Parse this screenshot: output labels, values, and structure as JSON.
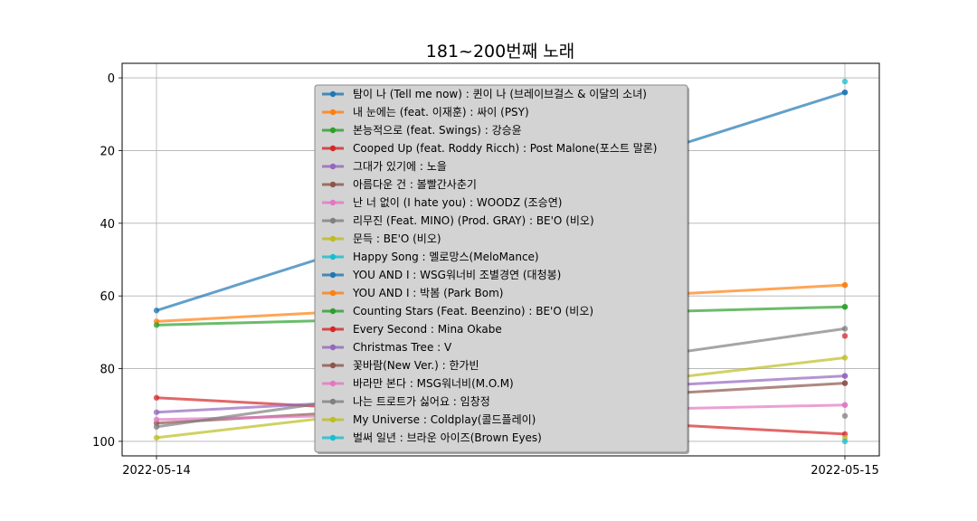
{
  "chart_data": {
    "type": "line",
    "title": "181~200번째 노래",
    "xlabel": "",
    "ylabel": "",
    "x": [
      "2022-05-14",
      "2022-05-15"
    ],
    "ylim": [
      104,
      -4
    ],
    "y_inverted": true,
    "y_ticks": [
      "0",
      "20",
      "40",
      "60",
      "80",
      "100"
    ],
    "grid": true,
    "legend_position": "center",
    "series": [
      {
        "name": "탐이 나 (Tell me now) : 퀸이 나 (브레이브걸스 & 이달의 소녀)",
        "color": "#1f77b4",
        "values": [
          64,
          4
        ]
      },
      {
        "name": "내 눈에는 (feat. 이재훈) : 싸이 (PSY)",
        "color": "#ff7f0e",
        "values": [
          67,
          57
        ]
      },
      {
        "name": "본능적으로 (feat. Swings) : 강승윤",
        "color": "#2ca02c",
        "values": [
          68,
          63
        ]
      },
      {
        "name": "Cooped Up (feat. Roddy Ricch) : Post Malone(포스트 말론)",
        "color": "#d62728",
        "values": [
          88,
          98
        ]
      },
      {
        "name": "그대가 있기에 : 노을",
        "color": "#9467bd",
        "values": [
          92,
          82
        ]
      },
      {
        "name": "아름다운 건 : 볼빨간사춘기",
        "color": "#8c564b",
        "values": [
          95,
          84
        ]
      },
      {
        "name": "난 너 없이 (I hate you) : WOODZ (조승연)",
        "color": "#e377c2",
        "values": [
          94,
          90
        ]
      },
      {
        "name": "리무진 (Feat. MINO) (Prod. GRAY) : BE'O (비오)",
        "color": "#7f7f7f",
        "values": [
          96,
          69
        ]
      },
      {
        "name": "문득 : BE'O (비오)",
        "color": "#bcbd22",
        "values": [
          99,
          77
        ]
      },
      {
        "name": "Happy Song : 멜로망스(MeloMance)",
        "color": "#17becf",
        "values": [
          null,
          1
        ]
      },
      {
        "name": "YOU AND I : WSG워너비 조별경연 (대청봉)",
        "color": "#1f77b4",
        "values": [
          null,
          4
        ]
      },
      {
        "name": "YOU AND I : 박봄 (Park Bom)",
        "color": "#ff7f0e",
        "values": [
          null,
          57
        ]
      },
      {
        "name": "Counting Stars (Feat. Beenzino) : BE'O (비오)",
        "color": "#2ca02c",
        "values": [
          null,
          63
        ]
      },
      {
        "name": "Every Second : Mina Okabe",
        "color": "#d62728",
        "values": [
          null,
          71
        ]
      },
      {
        "name": "Christmas Tree : V",
        "color": "#9467bd",
        "values": [
          null,
          82
        ]
      },
      {
        "name": "꽃바람(New Ver.) : 한가빈",
        "color": "#8c564b",
        "values": [
          null,
          84
        ]
      },
      {
        "name": "바라만 본다 : MSG워너비(M.O.M)",
        "color": "#e377c2",
        "values": [
          null,
          90
        ]
      },
      {
        "name": "나는 트로트가 싫어요 : 임창정",
        "color": "#7f7f7f",
        "values": [
          null,
          93
        ]
      },
      {
        "name": "My Universe : Coldplay(콜드플레이)",
        "color": "#bcbd22",
        "values": [
          null,
          99
        ]
      },
      {
        "name": "벌써 일년 : 브라운 아이즈(Brown Eyes)",
        "color": "#17becf",
        "values": [
          null,
          100
        ]
      }
    ]
  }
}
